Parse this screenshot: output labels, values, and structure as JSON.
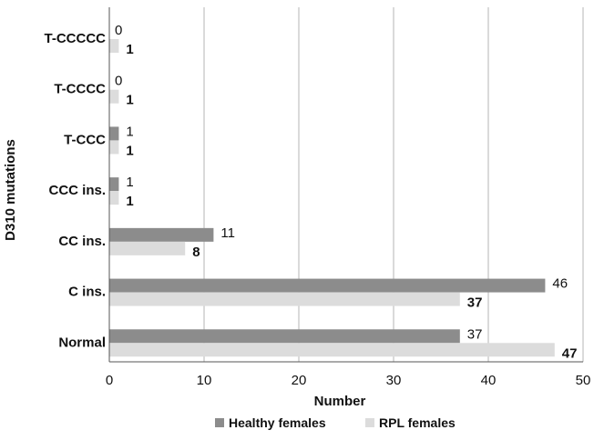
{
  "chart_data": {
    "type": "bar",
    "orientation": "horizontal",
    "categories": [
      "T-CCCCC",
      "T-CCCC",
      "T-CCC",
      "CCC ins.",
      "CC ins.",
      "C ins.",
      "Normal"
    ],
    "series": [
      {
        "name": "Healthy females",
        "values": [
          0,
          0,
          1,
          1,
          11,
          46,
          37
        ],
        "color": "#8c8c8c"
      },
      {
        "name": "RPL females",
        "values": [
          1,
          1,
          1,
          1,
          8,
          37,
          47
        ],
        "color": "#dcdcdc"
      }
    ],
    "xlabel": "Number",
    "ylabel": "D310 mutations",
    "xlim": [
      0,
      50
    ],
    "xticks": [
      0,
      10,
      20,
      30,
      40,
      50
    ],
    "grid": "vertical",
    "legend": "bottom"
  }
}
